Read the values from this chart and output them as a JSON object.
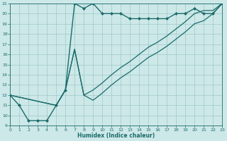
{
  "title": "",
  "xlabel": "Humidex (Indice chaleur)",
  "bg_color": "#cde8e8",
  "grid_color": "#a0c8c8",
  "line_color": "#1a6b6b",
  "xlim": [
    0,
    23
  ],
  "ylim": [
    9,
    21
  ],
  "xticks": [
    0,
    1,
    2,
    3,
    4,
    5,
    6,
    7,
    8,
    9,
    10,
    11,
    12,
    13,
    14,
    15,
    16,
    17,
    18,
    19,
    20,
    21,
    22,
    23
  ],
  "yticks": [
    9,
    10,
    11,
    12,
    13,
    14,
    15,
    16,
    17,
    18,
    19,
    20,
    21
  ],
  "series": [
    {
      "x": [
        0,
        1,
        2,
        3,
        4,
        5,
        6,
        7,
        8,
        9,
        10,
        11,
        12,
        13,
        14,
        15,
        16,
        17,
        18,
        19,
        20,
        21,
        22,
        23
      ],
      "y": [
        12,
        11,
        9.5,
        9.5,
        9.5,
        11,
        12.5,
        21,
        20.5,
        21,
        20,
        20,
        20,
        19.5,
        19.5,
        19.5,
        19.5,
        19.5,
        20,
        20,
        20.5,
        20,
        20,
        21
      ],
      "marker": "D",
      "markersize": 2.0,
      "linewidth": 1.0
    },
    {
      "x": [
        0,
        5,
        6,
        7,
        8,
        9,
        10,
        11,
        12,
        13,
        14,
        15,
        16,
        17,
        18,
        19,
        20,
        21,
        22,
        23
      ],
      "y": [
        12,
        11,
        12.5,
        16.5,
        12,
        12.5,
        13.2,
        14.0,
        14.7,
        15.3,
        16.0,
        16.7,
        17.2,
        17.8,
        18.5,
        19.2,
        20.0,
        20.3,
        20.3,
        21
      ],
      "marker": null,
      "markersize": 0,
      "linewidth": 0.9
    },
    {
      "x": [
        0,
        5,
        6,
        7,
        8,
        9,
        10,
        11,
        12,
        13,
        14,
        15,
        16,
        17,
        18,
        19,
        20,
        21,
        22,
        23
      ],
      "y": [
        12,
        11,
        12.5,
        16.5,
        12,
        11.5,
        12.2,
        13.0,
        13.7,
        14.3,
        15.0,
        15.7,
        16.2,
        16.8,
        17.5,
        18.2,
        19.0,
        19.3,
        20.0,
        21
      ],
      "marker": null,
      "markersize": 0,
      "linewidth": 0.9
    }
  ]
}
